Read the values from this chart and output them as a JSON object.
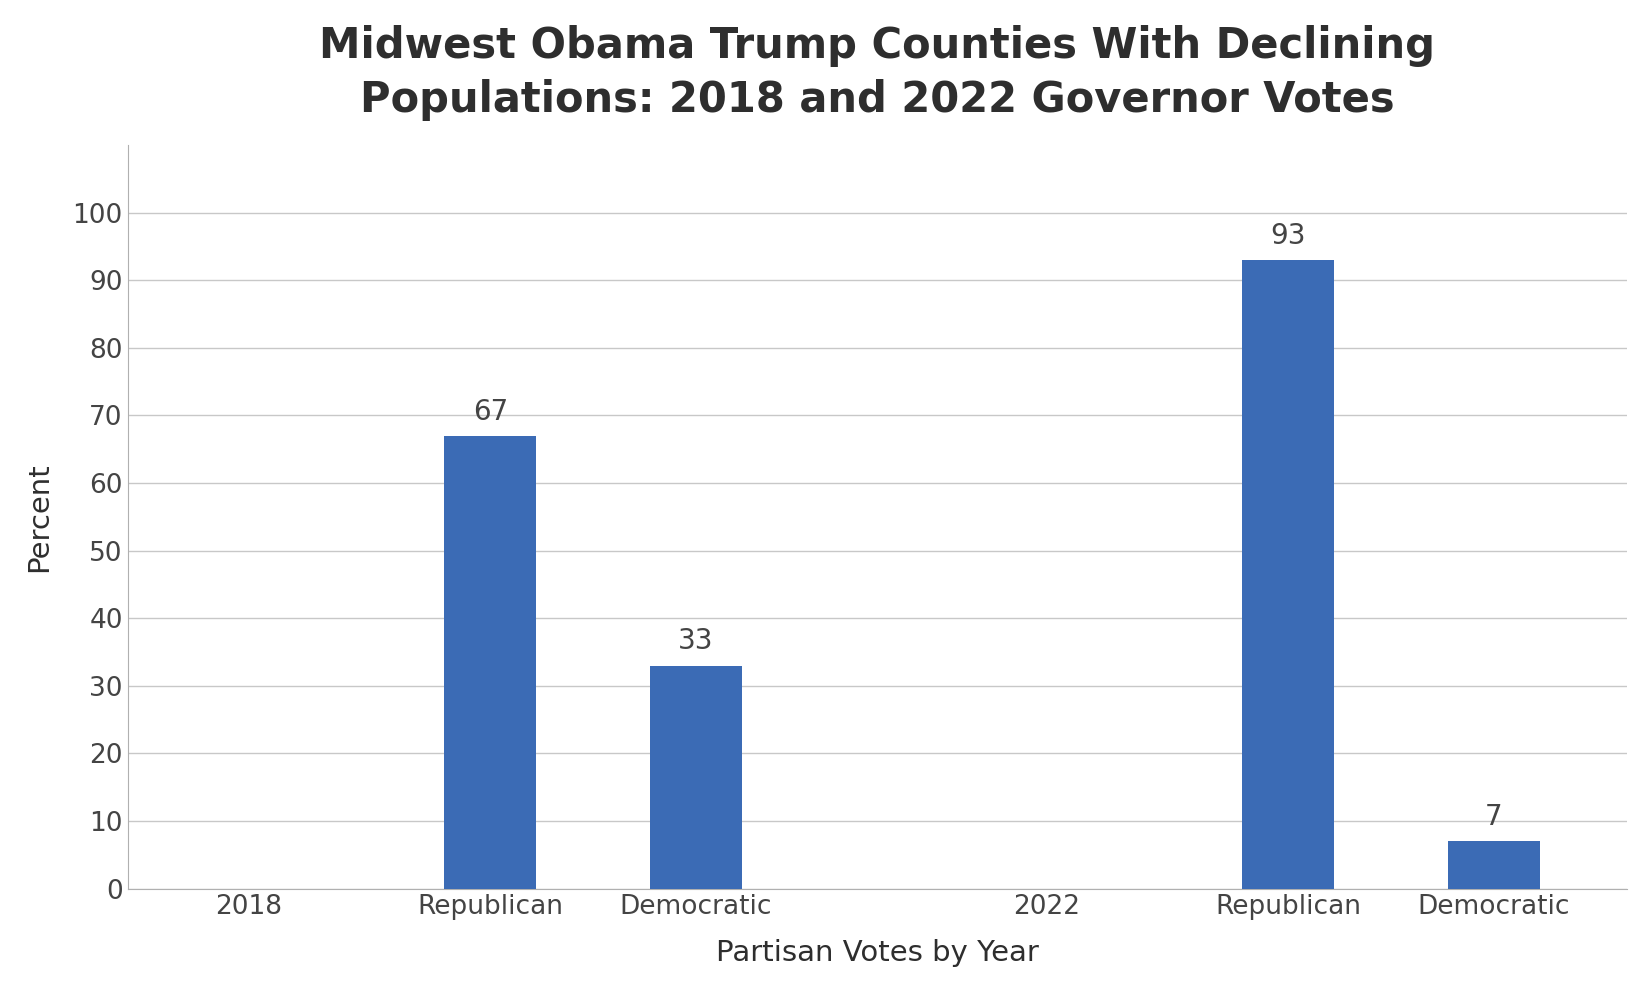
{
  "title": "Midwest Obama Trump Counties With Declining\nPopulations: 2018 and 2022 Governor Votes",
  "xlabel": "Partisan Votes by Year",
  "ylabel": "Percent",
  "categories": [
    "2018",
    "Republican",
    "Democratic",
    "2022",
    "Republican",
    "Democratic"
  ],
  "bar_indices": [
    1,
    2,
    4,
    5
  ],
  "bar_values": [
    67,
    33,
    93,
    7
  ],
  "bar_labels": [
    "67",
    "33",
    "93",
    "7"
  ],
  "bar_color": "#3B6BB5",
  "ylim": [
    0,
    110
  ],
  "yticks": [
    0,
    10,
    20,
    30,
    40,
    50,
    60,
    70,
    80,
    90,
    100
  ],
  "title_fontsize": 30,
  "label_fontsize": 21,
  "tick_fontsize": 19,
  "annotation_fontsize": 20,
  "background_color": "#ffffff",
  "grid_color": "#c8c8c8",
  "title_color": "#2e2e2e",
  "axis_label_color": "#2e2e2e",
  "tick_color": "#444444",
  "bar_width": 0.38
}
